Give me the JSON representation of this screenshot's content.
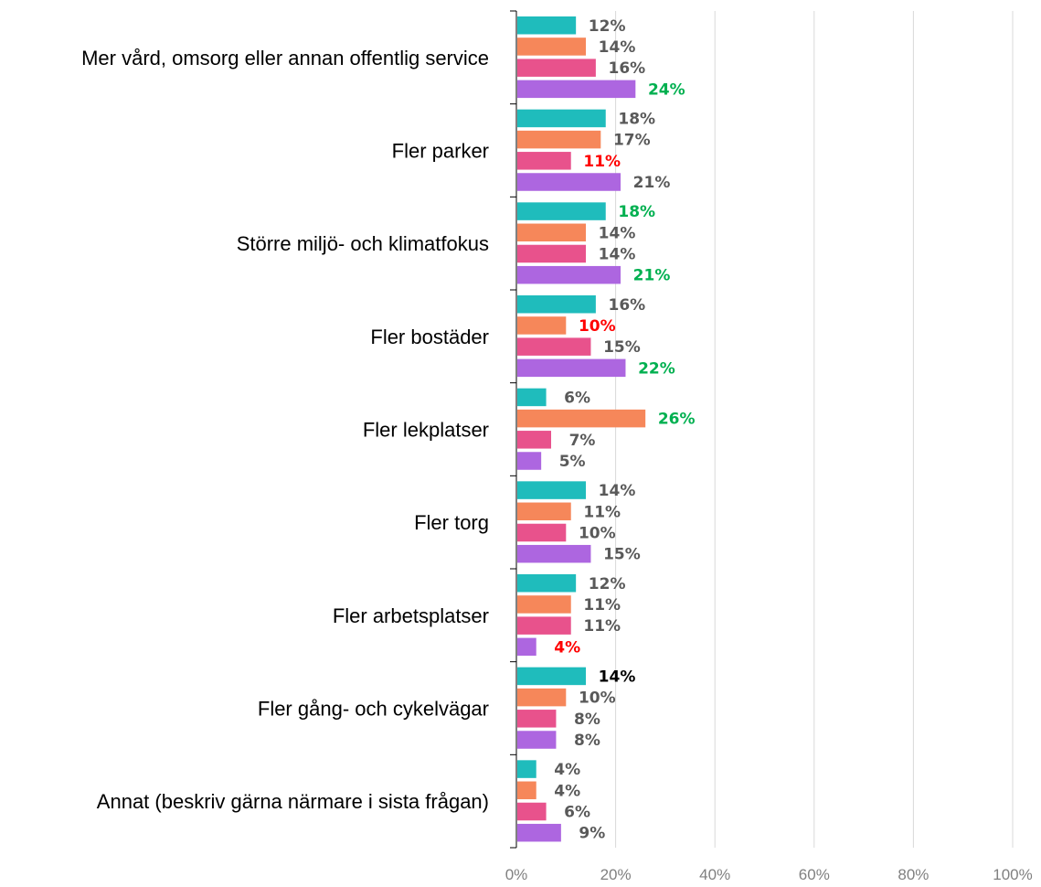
{
  "chart_data": {
    "type": "bar",
    "orientation": "horizontal",
    "categories": [
      "Mer vård, omsorg eller annan offentlig service",
      "Fler parker",
      "Större miljö- och klimatfokus",
      "Fler bostäder",
      "Fler lekplatser",
      "Fler torg",
      "Fler arbetsplatser",
      "Fler gång- och cykelvägar",
      "Annat (beskriv gärna närmare i sista frågan)"
    ],
    "series": [
      {
        "color": "#1fbcbc",
        "values": [
          12,
          18,
          18,
          16,
          6,
          14,
          12,
          14,
          4
        ]
      },
      {
        "color": "#f6875a",
        "values": [
          14,
          17,
          14,
          10,
          26,
          11,
          11,
          10,
          4
        ]
      },
      {
        "color": "#e8528c",
        "values": [
          16,
          11,
          14,
          15,
          7,
          10,
          11,
          8,
          6
        ]
      },
      {
        "color": "#ad66e0",
        "values": [
          24,
          21,
          21,
          22,
          5,
          15,
          4,
          8,
          9
        ]
      }
    ],
    "data_labels": [
      [
        "12%",
        "18%",
        "18%",
        "16%",
        "6%",
        "14%",
        "12%",
        "14%",
        "4%"
      ],
      [
        "14%",
        "17%",
        "14%",
        "10%",
        "26%",
        "11%",
        "11%",
        "10%",
        "4%"
      ],
      [
        "16%",
        "11%",
        "14%",
        "15%",
        "7%",
        "10%",
        "11%",
        "8%",
        "6%"
      ],
      [
        "24%",
        "21%",
        "21%",
        "22%",
        "5%",
        "15%",
        "4%",
        "8%",
        "9%"
      ]
    ],
    "label_colors": [
      [
        "#595959",
        "#595959",
        "#00b050",
        "#595959",
        "#595959",
        "#595959",
        "#595959",
        "#000000",
        "#595959"
      ],
      [
        "#595959",
        "#595959",
        "#595959",
        "#ff0000",
        "#00b050",
        "#595959",
        "#595959",
        "#595959",
        "#595959"
      ],
      [
        "#595959",
        "#ff0000",
        "#595959",
        "#595959",
        "#595959",
        "#595959",
        "#595959",
        "#595959",
        "#595959"
      ],
      [
        "#00b050",
        "#595959",
        "#00b050",
        "#00b050",
        "#595959",
        "#595959",
        "#ff0000",
        "#595959",
        "#595959"
      ]
    ],
    "xlim": [
      0,
      100
    ],
    "x_ticks": [
      0,
      20,
      40,
      60,
      80,
      100
    ],
    "x_tick_labels": [
      "0%",
      "20%",
      "40%",
      "60%",
      "80%",
      "100%"
    ],
    "grid": true,
    "title": "",
    "xlabel": "",
    "ylabel": ""
  }
}
